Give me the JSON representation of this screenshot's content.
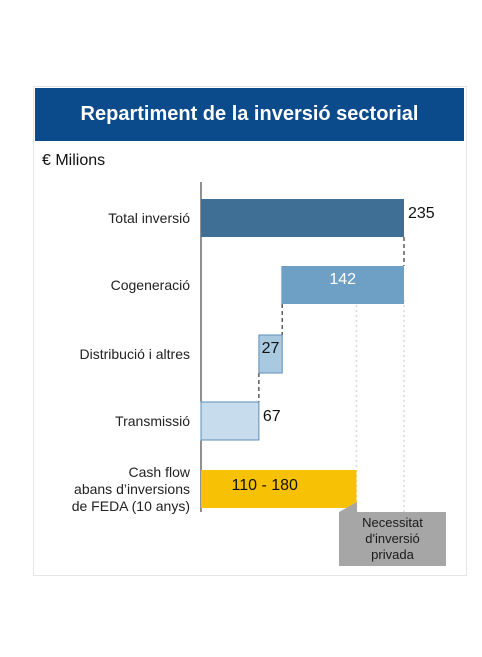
{
  "title": "Repartiment de la inversió sectorial",
  "unit_label": "€ Milions",
  "callout": {
    "lines": [
      "Necessitat",
      "d'inversió",
      "privada"
    ]
  },
  "chart_data": {
    "type": "bar",
    "subtype": "waterfall",
    "title": "Repartiment de la inversió sectorial",
    "ylabel": "€ Milions",
    "xlim": [
      0,
      235
    ],
    "grid": false,
    "bars": [
      {
        "category_lines": [
          "Total inversió"
        ],
        "start": 0,
        "end": 235,
        "label": "235",
        "color": "#3f6f95",
        "label_pos": "outside"
      },
      {
        "category_lines": [
          "Cogeneració"
        ],
        "start": 93,
        "end": 235,
        "label": "142",
        "color": "#6e9fc4",
        "label_pos": "inside"
      },
      {
        "category_lines": [
          "Distribució i altres"
        ],
        "start": 67,
        "end": 94,
        "label": "27",
        "color": "#a9c9e0",
        "label_pos": "inside-small"
      },
      {
        "category_lines": [
          "Transmissió"
        ],
        "start": 0,
        "end": 67,
        "label": "67",
        "color": "#c7dcec",
        "label_pos": "outside"
      },
      {
        "category_lines": [
          "Cash flow",
          "abans d’inversions",
          "de FEDA (10 anys)"
        ],
        "start": 0,
        "end": 180,
        "label": "110 - 180",
        "color": "#f7c206",
        "label_pos": "inside-dark"
      }
    ],
    "reference_lines": [
      {
        "value": 180,
        "style": "dotted"
      },
      {
        "value": 235,
        "style": "dotted"
      }
    ]
  }
}
